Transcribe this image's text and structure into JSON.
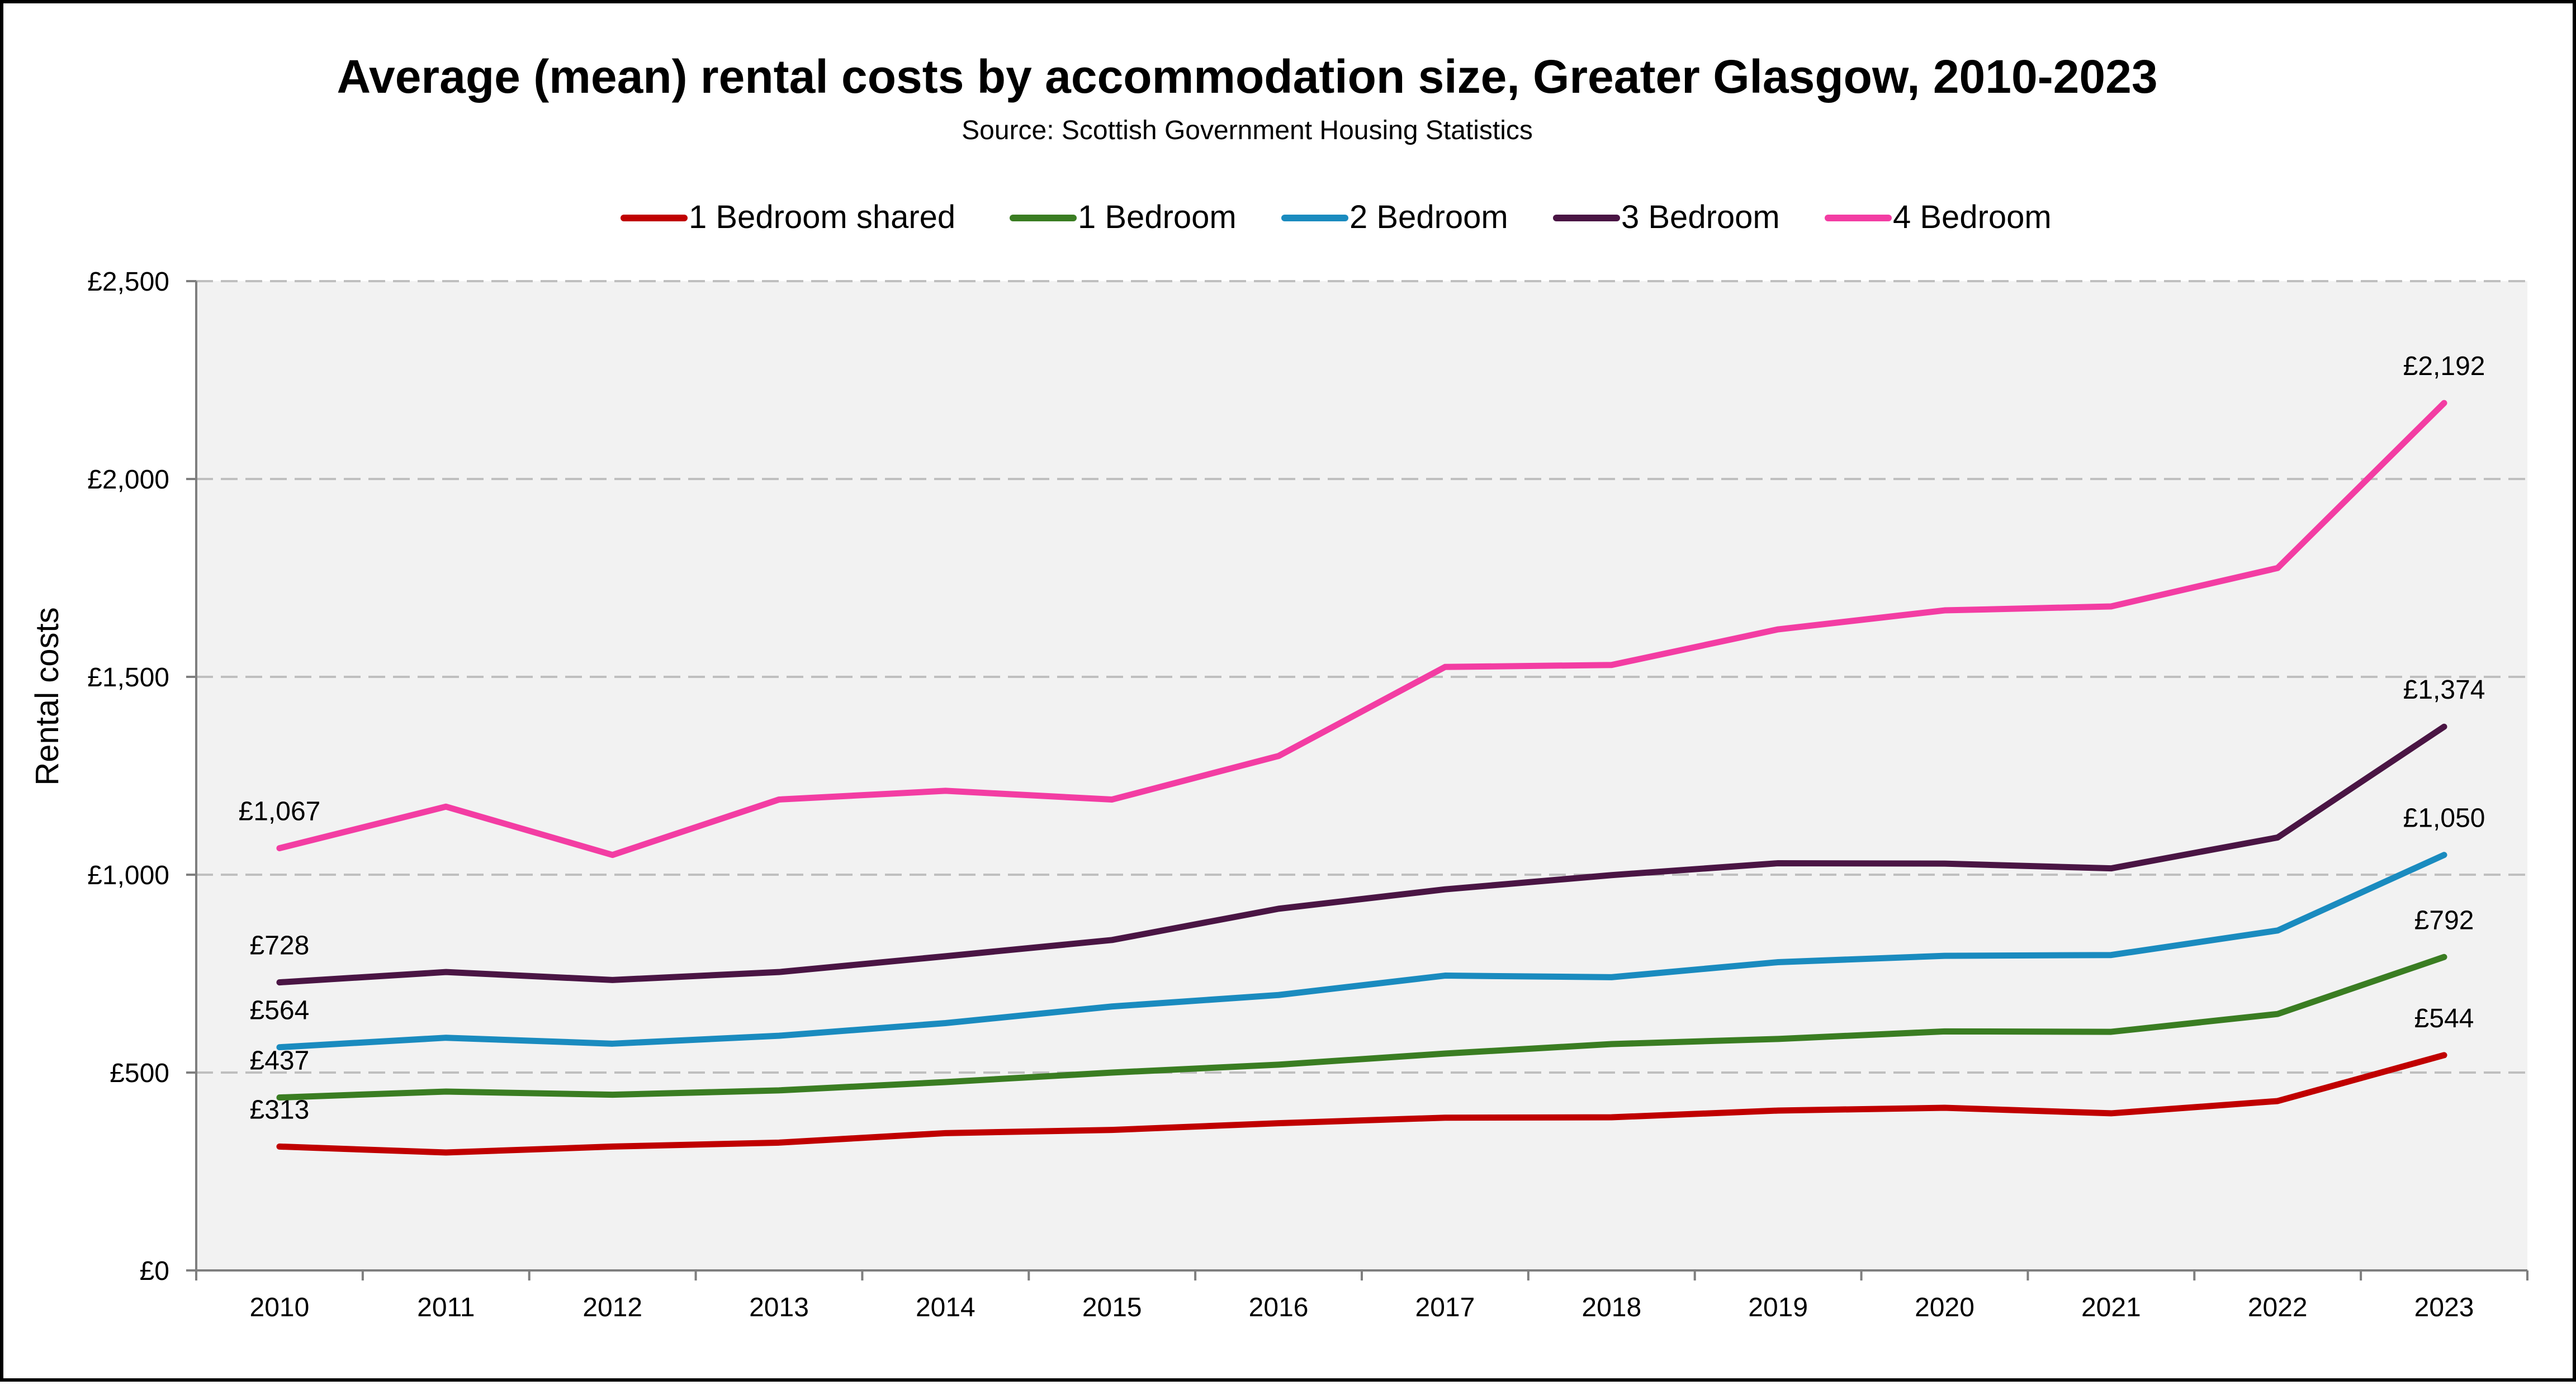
{
  "chart_data": {
    "type": "line",
    "title": "Average (mean) rental costs by accommodation size, Greater Glasgow, 2010-2023",
    "subtitle": "Source: Scottish Government Housing Statistics",
    "xlabel": "",
    "ylabel": "Rental costs",
    "ylim": [
      0,
      2500
    ],
    "y_ticks": [
      0,
      500,
      1000,
      1500,
      2000,
      2500
    ],
    "y_tick_labels": [
      "£0",
      "£500",
      "£1,000",
      "£1,500",
      "£2,000",
      "£2,500"
    ],
    "grid": "horizontal dashed",
    "legend_position": "top",
    "categories": [
      "2010",
      "2011",
      "2012",
      "2013",
      "2014",
      "2015",
      "2016",
      "2017",
      "2018",
      "2019",
      "2020",
      "2021",
      "2022",
      "2023"
    ],
    "series": [
      {
        "name": "1 Bedroom shared",
        "color": "#c00000",
        "values": [
          313,
          298,
          313,
          323,
          347,
          355,
          372,
          386,
          387,
          404,
          411,
          397,
          428,
          544
        ],
        "labels": {
          "0": "£313",
          "13": "£544"
        }
      },
      {
        "name": "1 Bedroom",
        "color": "#3a7d22",
        "values": [
          437,
          452,
          444,
          455,
          476,
          500,
          520,
          548,
          572,
          585,
          604,
          603,
          648,
          792
        ],
        "labels": {
          "0": "£437",
          "13": "£792"
        }
      },
      {
        "name": "2 Bedroom",
        "color": "#1a8bbf",
        "values": [
          564,
          588,
          573,
          593,
          625,
          667,
          696,
          745,
          741,
          779,
          795,
          797,
          859,
          1050
        ],
        "labels": {
          "0": "£564",
          "13": "£1,050"
        }
      },
      {
        "name": "3 Bedroom",
        "color": "#4a1544",
        "values": [
          728,
          754,
          734,
          754,
          794,
          835,
          914,
          963,
          999,
          1029,
          1028,
          1016,
          1094,
          1374
        ],
        "labels": {
          "0": "£728",
          "13": "£1,374"
        }
      },
      {
        "name": "4 Bedroom",
        "color": "#f33da3",
        "values": [
          1067,
          1172,
          1050,
          1190,
          1212,
          1190,
          1300,
          1525,
          1530,
          1620,
          1668,
          1678,
          1775,
          2192
        ],
        "labels": {
          "0": "£1,067",
          "13": "£2,192"
        }
      }
    ]
  }
}
